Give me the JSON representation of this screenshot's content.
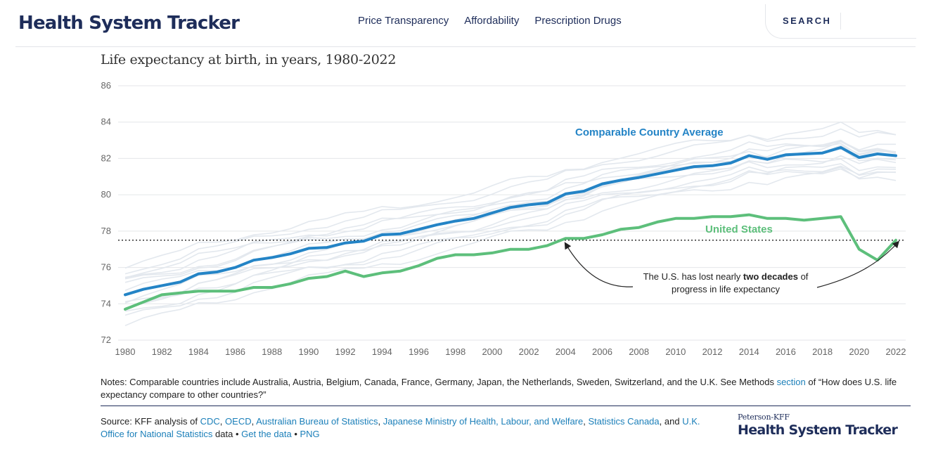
{
  "header": {
    "brand": "Health System Tracker",
    "nav": [
      "Price Transparency",
      "Affordability",
      "Prescription Drugs"
    ],
    "search_label": "SEARCH"
  },
  "chart_data": {
    "type": "line",
    "title": "Life expectancy at birth, in years, 1980-2022",
    "xlim": [
      1980,
      2022
    ],
    "ylim": [
      72,
      86
    ],
    "x_ticks": [
      "1980",
      "1982",
      "1984",
      "1986",
      "1988",
      "1990",
      "1992",
      "1994",
      "1996",
      "1998",
      "2000",
      "2002",
      "2004",
      "2006",
      "2008",
      "2010",
      "2012",
      "2014",
      "2016",
      "2018",
      "2020",
      "2022"
    ],
    "y_ticks": [
      "72",
      "74",
      "76",
      "78",
      "80",
      "82",
      "84",
      "86"
    ],
    "grid": true,
    "x": [
      1980,
      1981,
      1982,
      1983,
      1984,
      1985,
      1986,
      1987,
      1988,
      1989,
      1990,
      1991,
      1992,
      1993,
      1994,
      1995,
      1996,
      1997,
      1998,
      1999,
      2000,
      2001,
      2002,
      2003,
      2004,
      2005,
      2006,
      2007,
      2008,
      2009,
      2010,
      2011,
      2012,
      2013,
      2014,
      2015,
      2016,
      2017,
      2018,
      2019,
      2020,
      2021,
      2022
    ],
    "series": [
      {
        "name": "Comparable Country Average",
        "color": "#2484c6",
        "values": [
          74.5,
          74.8,
          75.0,
          75.2,
          75.65,
          75.75,
          76.0,
          76.4,
          76.55,
          76.75,
          77.05,
          77.1,
          77.35,
          77.45,
          77.8,
          77.85,
          78.1,
          78.35,
          78.55,
          78.7,
          79.0,
          79.3,
          79.45,
          79.55,
          80.05,
          80.2,
          80.6,
          80.8,
          80.95,
          81.15,
          81.35,
          81.55,
          81.6,
          81.75,
          82.15,
          81.95,
          82.2,
          82.25,
          82.3,
          82.6,
          82.05,
          82.25,
          82.15
        ]
      },
      {
        "name": "United States",
        "color": "#5dbf7b",
        "values": [
          73.7,
          74.1,
          74.5,
          74.6,
          74.7,
          74.7,
          74.7,
          74.9,
          74.9,
          75.1,
          75.4,
          75.5,
          75.8,
          75.5,
          75.7,
          75.8,
          76.1,
          76.5,
          76.7,
          76.7,
          76.8,
          77.0,
          77.0,
          77.2,
          77.6,
          77.6,
          77.8,
          78.1,
          78.2,
          78.5,
          78.7,
          78.7,
          78.8,
          78.8,
          78.9,
          78.7,
          78.7,
          78.6,
          78.7,
          78.8,
          77.0,
          76.4,
          77.5
        ]
      }
    ],
    "reference_line": {
      "value": 77.5,
      "style": "dotted"
    },
    "annotation": {
      "before": "The U.S. has lost nearly ",
      "bold": "two decades",
      "after": " of",
      "line2": "progress in life expectancy"
    },
    "background_lines_color": "#e3e8ee"
  },
  "notes": {
    "text": "Notes: Comparable countries include Australia, Austria, Belgium, Canada, France, Germany, Japan, the Netherlands, Sweden, Switzerland, and the U.K. See Methods ",
    "link": "section",
    "after": " of “How does U.S. life expectancy compare to other countries?”"
  },
  "source": {
    "prefix": "Source: KFF analysis of ",
    "links": [
      "CDC",
      "OECD",
      "Australian Bureau of Statistics",
      "Japanese Ministry of Health, Labour, and Welfare",
      "Statistics Canada",
      "U.K. Office for National Statistics"
    ],
    "data_text": " data • ",
    "get_data": "Get the data",
    "bullet": " • ",
    "png": "PNG"
  },
  "logo": {
    "top": "Peterson-KFF",
    "main": "Health System Tracker"
  }
}
